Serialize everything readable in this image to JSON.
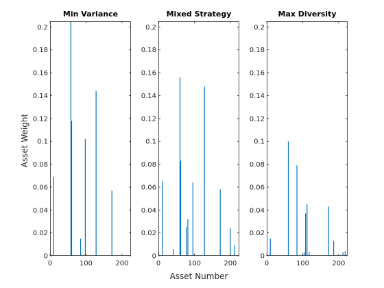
{
  "chart_data": {
    "type": "bar",
    "ylabel": "Asset Weight",
    "xlabel": "Asset Number",
    "xlim": [
      0,
      225
    ],
    "ylim": [
      0,
      0.205
    ],
    "xticks": [
      0,
      100,
      200
    ],
    "yticks": [
      0,
      0.02,
      0.04,
      0.06,
      0.08,
      0.1,
      0.12,
      0.14,
      0.16,
      0.18,
      0.2
    ],
    "ytick_labels": [
      "0",
      "0.02",
      "0.04",
      "0.06",
      "0.08",
      "0.1",
      "0.12",
      "0.14",
      "0.16",
      "0.18",
      "0.2"
    ],
    "bar_color": "#0072BD",
    "panels": [
      {
        "title": "Min Variance",
        "x": [
          10,
          58,
          60,
          85,
          98,
          128,
          172
        ],
        "values": [
          0.069,
          0.205,
          0.118,
          0.015,
          0.102,
          0.144,
          0.057
        ]
      },
      {
        "title": "Mixed Strategy",
        "x": [
          12,
          42,
          60,
          62,
          78,
          82,
          96,
          100,
          128,
          172,
          200,
          212
        ],
        "values": [
          0.065,
          0.006,
          0.156,
          0.083,
          0.025,
          0.032,
          0.064,
          0.002,
          0.148,
          0.058,
          0.024,
          0.009
        ]
      },
      {
        "title": "Max Diversity",
        "x": [
          10,
          60,
          84,
          100,
          104,
          108,
          112,
          118,
          172,
          186,
          212,
          218
        ],
        "values": [
          0.015,
          0.1,
          0.079,
          0.002,
          0.003,
          0.037,
          0.045,
          0.003,
          0.043,
          0.013,
          0.003,
          0.004
        ]
      }
    ]
  }
}
